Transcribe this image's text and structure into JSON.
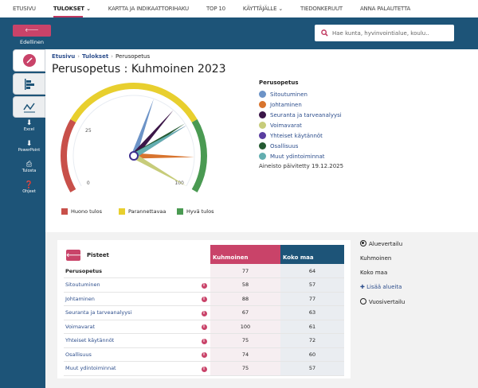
{
  "nav": {
    "items": [
      "ETUSIVU",
      "TULOKSET",
      "KARTTA JA INDIKAATTORIHAKU",
      "TOP 10",
      "KÄYTTÄJÄLLE",
      "TIEDONKERUUT",
      "ANNA PALAUTETTA"
    ],
    "active": 1
  },
  "header": {
    "prev_label": "Edellinen",
    "search_placeholder": "Hae kunta, hyvinvointialue, koulu.."
  },
  "sidebar": {
    "buttons": [
      "Excel",
      "PowerPoint",
      "Tulosta",
      "Ohjeet"
    ]
  },
  "breadcrumb": [
    "Etusivu",
    "Tulokset",
    "Perusopetus"
  ],
  "title": "Perusopetus : Kuhmoinen 2023",
  "chart_data": {
    "type": "gauge",
    "min": 0,
    "max": 100,
    "tick_labels": [
      "0",
      "25",
      "100"
    ],
    "bands": [
      {
        "name": "Huono tulos",
        "from": 0,
        "to": 25,
        "color": "#c8504a"
      },
      {
        "name": "Parannettavaa",
        "from": 25,
        "to": 75,
        "color": "#e8cf2e"
      },
      {
        "name": "Hyvä tulos",
        "from": 75,
        "to": 100,
        "color": "#4a9a52"
      }
    ],
    "series": [
      {
        "name": "Sitoutuminen",
        "value": 58,
        "color": "#6c93c7"
      },
      {
        "name": "Johtaminen",
        "value": 88,
        "color": "#d8742e"
      },
      {
        "name": "Seuranta ja tarveanalyysi",
        "value": 67,
        "color": "#3b1648"
      },
      {
        "name": "Voimavarat",
        "value": 100,
        "color": "#c7cc7a"
      },
      {
        "name": "Yhteiset käytännöt",
        "value": 75,
        "color": "#5a3ea0"
      },
      {
        "name": "Osallisuus",
        "value": 74,
        "color": "#245a32"
      },
      {
        "name": "Muut ydintoiminnat",
        "value": 75,
        "color": "#63aeb0"
      }
    ]
  },
  "legend": {
    "title": "Perusopetus",
    "updated": "Aineisto päivitetty 19.12.2025"
  },
  "table": {
    "back_label": "Pisteet",
    "col_kuhmoinen": "Kuhmoinen",
    "col_koko": "Koko maa",
    "total": {
      "label": "Perusopetus",
      "kuhmoinen": "77",
      "koko": "64"
    },
    "rows": [
      {
        "label": "Sitoutuminen",
        "kuhmoinen": "58",
        "koko": "57"
      },
      {
        "label": "Johtaminen",
        "kuhmoinen": "88",
        "koko": "77"
      },
      {
        "label": "Seuranta ja tarveanalyysi",
        "kuhmoinen": "67",
        "koko": "63"
      },
      {
        "label": "Voimavarat",
        "kuhmoinen": "100",
        "koko": "61"
      },
      {
        "label": "Yhteiset käytännöt",
        "kuhmoinen": "75",
        "koko": "72"
      },
      {
        "label": "Osallisuus",
        "kuhmoinen": "74",
        "koko": "60"
      },
      {
        "label": "Muut ydintoiminnat",
        "kuhmoinen": "75",
        "koko": "57"
      }
    ]
  },
  "compare": {
    "area_label": "Aluevertailu",
    "areas": [
      "Kuhmoinen",
      "Koko maa"
    ],
    "add_label": "Lisää alueita",
    "year_label": "Vuosivertailu"
  }
}
